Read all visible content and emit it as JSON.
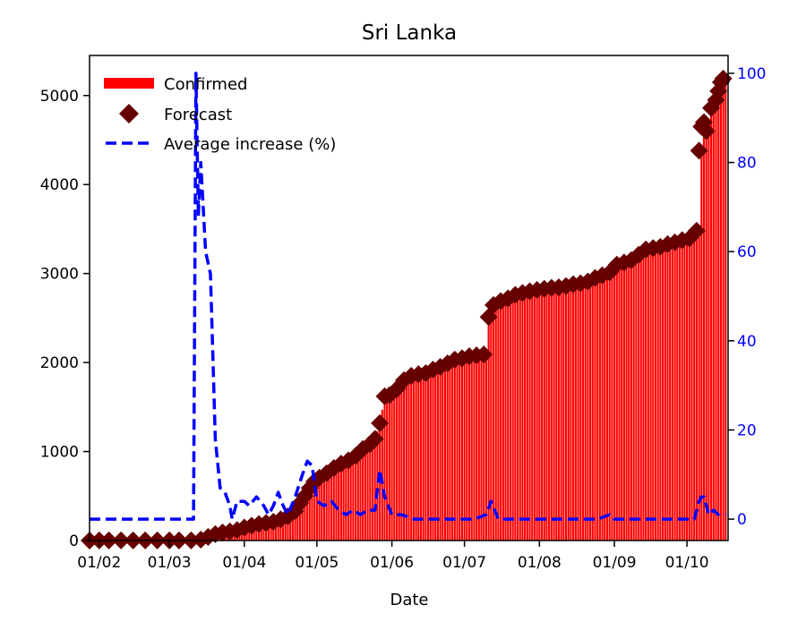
{
  "chart_data": {
    "type": "bar",
    "title": "Sri Lanka",
    "xlabel": "Date",
    "ylabel": "",
    "y2label": "",
    "x_ticks": [
      "01/02",
      "01/03",
      "01/04",
      "01/05",
      "01/06",
      "01/07",
      "01/08",
      "01/09",
      "01/10"
    ],
    "x_tick_dates": [
      "2020-02-01",
      "2020-03-01",
      "2020-04-01",
      "2020-05-01",
      "2020-06-01",
      "2020-07-01",
      "2020-08-01",
      "2020-09-01",
      "2020-10-01"
    ],
    "x_range": [
      "2020-01-28",
      "2020-10-18"
    ],
    "y_ticks": [
      0,
      1000,
      2000,
      3000,
      4000,
      5000
    ],
    "y_range": [
      0,
      5450
    ],
    "y2_ticks": [
      0,
      20,
      40,
      60,
      80,
      100
    ],
    "y2_range": [
      -4.8,
      104
    ],
    "legend": {
      "placement": "top-left",
      "entries": [
        "Confirmed",
        "Forecast",
        "Average increase (%)"
      ]
    },
    "colors": {
      "confirmed": "#ff0000",
      "forecast": "#660000",
      "average": "#0000ff",
      "y2_axis": "#0000ff"
    },
    "confirmed_and_forecast": [
      [
        "2020-01-28",
        0
      ],
      [
        "2020-02-01",
        1
      ],
      [
        "2020-02-15",
        1
      ],
      [
        "2020-03-01",
        1
      ],
      [
        "2020-03-10",
        1
      ],
      [
        "2020-03-13",
        5
      ],
      [
        "2020-03-15",
        18
      ],
      [
        "2020-03-18",
        45
      ],
      [
        "2020-03-20",
        72
      ],
      [
        "2020-03-25",
        102
      ],
      [
        "2020-03-30",
        120
      ],
      [
        "2020-04-03",
        155
      ],
      [
        "2020-04-08",
        189
      ],
      [
        "2020-04-12",
        199
      ],
      [
        "2020-04-16",
        238
      ],
      [
        "2020-04-20",
        304
      ],
      [
        "2020-04-24",
        420
      ],
      [
        "2020-04-27",
        523
      ],
      [
        "2020-04-30",
        665
      ],
      [
        "2020-05-05",
        755
      ],
      [
        "2020-05-10",
        847
      ],
      [
        "2020-05-15",
        915
      ],
      [
        "2020-05-20",
        1028
      ],
      [
        "2020-05-25",
        1141
      ],
      [
        "2020-05-27",
        1319
      ],
      [
        "2020-05-29",
        1620
      ],
      [
        "2020-06-01",
        1643
      ],
      [
        "2020-06-05",
        1797
      ],
      [
        "2020-06-10",
        1859
      ],
      [
        "2020-06-15",
        1880
      ],
      [
        "2020-06-20",
        1950
      ],
      [
        "2020-06-25",
        2000
      ],
      [
        "2020-07-01",
        2066
      ],
      [
        "2020-07-05",
        2077
      ],
      [
        "2020-07-10",
        2094
      ],
      [
        "2020-07-11",
        2511
      ],
      [
        "2020-07-13",
        2646
      ],
      [
        "2020-07-15",
        2687
      ],
      [
        "2020-07-20",
        2730
      ],
      [
        "2020-07-25",
        2781
      ],
      [
        "2020-07-30",
        2810
      ],
      [
        "2020-08-05",
        2834
      ],
      [
        "2020-08-10",
        2844
      ],
      [
        "2020-08-15",
        2880
      ],
      [
        "2020-08-20",
        2902
      ],
      [
        "2020-08-25",
        2959
      ],
      [
        "2020-08-30",
        3012
      ],
      [
        "2020-09-01",
        3086
      ],
      [
        "2020-09-05",
        3123
      ],
      [
        "2020-09-10",
        3195
      ],
      [
        "2020-09-15",
        3271
      ],
      [
        "2020-09-20",
        3300
      ],
      [
        "2020-09-25",
        3345
      ],
      [
        "2020-09-30",
        3380
      ],
      [
        "2020-10-04",
        3402
      ],
      [
        "2020-10-06",
        3513
      ],
      [
        "2020-10-07",
        4400
      ],
      [
        "2020-10-08",
        4630
      ],
      [
        "2020-10-10",
        4700
      ],
      [
        "2020-10-12",
        4900
      ],
      [
        "2020-10-14",
        5000
      ],
      [
        "2020-10-15",
        5100
      ],
      [
        "2020-10-17",
        5180
      ]
    ],
    "forecast_points": [
      [
        "2020-01-28",
        0
      ],
      [
        "2020-02-01",
        1
      ],
      [
        "2020-02-05",
        1
      ],
      [
        "2020-02-10",
        1
      ],
      [
        "2020-02-15",
        1
      ],
      [
        "2020-02-20",
        1
      ],
      [
        "2020-02-25",
        1
      ],
      [
        "2020-03-01",
        1
      ],
      [
        "2020-03-05",
        1
      ],
      [
        "2020-03-10",
        1
      ],
      [
        "2020-03-14",
        10
      ],
      [
        "2020-03-17",
        40
      ],
      [
        "2020-03-20",
        72
      ],
      [
        "2020-03-23",
        90
      ],
      [
        "2020-03-26",
        102
      ],
      [
        "2020-03-29",
        117
      ],
      [
        "2020-04-01",
        146
      ],
      [
        "2020-04-04",
        166
      ],
      [
        "2020-04-07",
        185
      ],
      [
        "2020-04-10",
        197
      ],
      [
        "2020-04-13",
        210
      ],
      [
        "2020-04-16",
        238
      ],
      [
        "2020-04-19",
        270
      ],
      [
        "2020-04-22",
        330
      ],
      [
        "2020-04-24",
        420
      ],
      [
        "2020-04-26",
        500
      ],
      [
        "2020-04-28",
        590
      ],
      [
        "2020-04-30",
        665
      ],
      [
        "2020-05-02",
        705
      ],
      [
        "2020-05-05",
        755
      ],
      [
        "2020-05-08",
        815
      ],
      [
        "2020-05-11",
        863
      ],
      [
        "2020-05-14",
        900
      ],
      [
        "2020-05-17",
        950
      ],
      [
        "2020-05-20",
        1028
      ],
      [
        "2020-05-23",
        1085
      ],
      [
        "2020-05-25",
        1141
      ],
      [
        "2020-05-27",
        1319
      ],
      [
        "2020-05-29",
        1620
      ],
      [
        "2020-05-31",
        1633
      ],
      [
        "2020-06-03",
        1700
      ],
      [
        "2020-06-06",
        1801
      ],
      [
        "2020-06-09",
        1850
      ],
      [
        "2020-06-12",
        1869
      ],
      [
        "2020-06-15",
        1880
      ],
      [
        "2020-06-18",
        1920
      ],
      [
        "2020-06-21",
        1951
      ],
      [
        "2020-06-24",
        1990
      ],
      [
        "2020-06-27",
        2033
      ],
      [
        "2020-06-30",
        2047
      ],
      [
        "2020-07-03",
        2070
      ],
      [
        "2020-07-06",
        2080
      ],
      [
        "2020-07-09",
        2090
      ],
      [
        "2020-07-11",
        2511
      ],
      [
        "2020-07-13",
        2646
      ],
      [
        "2020-07-16",
        2690
      ],
      [
        "2020-07-19",
        2720
      ],
      [
        "2020-07-22",
        2760
      ],
      [
        "2020-07-25",
        2781
      ],
      [
        "2020-07-28",
        2800
      ],
      [
        "2020-07-31",
        2815
      ],
      [
        "2020-08-03",
        2828
      ],
      [
        "2020-08-06",
        2839
      ],
      [
        "2020-08-09",
        2844
      ],
      [
        "2020-08-12",
        2860
      ],
      [
        "2020-08-15",
        2880
      ],
      [
        "2020-08-18",
        2890
      ],
      [
        "2020-08-21",
        2910
      ],
      [
        "2020-08-24",
        2950
      ],
      [
        "2020-08-27",
        2980
      ],
      [
        "2020-08-30",
        3012
      ],
      [
        "2020-09-02",
        3100
      ],
      [
        "2020-09-05",
        3123
      ],
      [
        "2020-09-08",
        3150
      ],
      [
        "2020-09-11",
        3210
      ],
      [
        "2020-09-14",
        3271
      ],
      [
        "2020-09-17",
        3285
      ],
      [
        "2020-09-20",
        3300
      ],
      [
        "2020-09-23",
        3330
      ],
      [
        "2020-09-26",
        3350
      ],
      [
        "2020-09-29",
        3375
      ],
      [
        "2020-10-02",
        3395
      ],
      [
        "2020-10-05",
        3480
      ],
      [
        "2020-10-06",
        4380
      ],
      [
        "2020-10-07",
        4650
      ],
      [
        "2020-10-08",
        4700
      ],
      [
        "2020-10-09",
        4600
      ],
      [
        "2020-10-11",
        4860
      ],
      [
        "2020-10-13",
        4950
      ],
      [
        "2020-10-14",
        5050
      ],
      [
        "2020-10-15",
        5150
      ],
      [
        "2020-10-16",
        5190
      ]
    ],
    "average_increase": [
      [
        "2020-01-28",
        0
      ],
      [
        "2020-03-10",
        0
      ],
      [
        "2020-03-11",
        0
      ],
      [
        "2020-03-12",
        100
      ],
      [
        "2020-03-13",
        68
      ],
      [
        "2020-03-14",
        80
      ],
      [
        "2020-03-15",
        70
      ],
      [
        "2020-03-16",
        60
      ],
      [
        "2020-03-18",
        55
      ],
      [
        "2020-03-20",
        18
      ],
      [
        "2020-03-22",
        7
      ],
      [
        "2020-03-24",
        6
      ],
      [
        "2020-03-26",
        3
      ],
      [
        "2020-03-27",
        0
      ],
      [
        "2020-03-29",
        4
      ],
      [
        "2020-04-01",
        4
      ],
      [
        "2020-04-03",
        3
      ],
      [
        "2020-04-06",
        5
      ],
      [
        "2020-04-09",
        3
      ],
      [
        "2020-04-11",
        1
      ],
      [
        "2020-04-13",
        3
      ],
      [
        "2020-04-15",
        6
      ],
      [
        "2020-04-17",
        3
      ],
      [
        "2020-04-19",
        1
      ],
      [
        "2020-04-22",
        5
      ],
      [
        "2020-04-25",
        10
      ],
      [
        "2020-04-27",
        13
      ],
      [
        "2020-04-29",
        12
      ],
      [
        "2020-05-01",
        4
      ],
      [
        "2020-05-04",
        3
      ],
      [
        "2020-05-07",
        4
      ],
      [
        "2020-05-10",
        2
      ],
      [
        "2020-05-13",
        1
      ],
      [
        "2020-05-16",
        2
      ],
      [
        "2020-05-19",
        1
      ],
      [
        "2020-05-22",
        2
      ],
      [
        "2020-05-25",
        2
      ],
      [
        "2020-05-27",
        11
      ],
      [
        "2020-05-29",
        5
      ],
      [
        "2020-06-01",
        1
      ],
      [
        "2020-06-05",
        1
      ],
      [
        "2020-06-10",
        0
      ],
      [
        "2020-06-15",
        0
      ],
      [
        "2020-06-20",
        0
      ],
      [
        "2020-06-25",
        0
      ],
      [
        "2020-06-30",
        0
      ],
      [
        "2020-07-05",
        0
      ],
      [
        "2020-07-10",
        1
      ],
      [
        "2020-07-12",
        4
      ],
      [
        "2020-07-15",
        0
      ],
      [
        "2020-07-20",
        0
      ],
      [
        "2020-07-25",
        0
      ],
      [
        "2020-07-30",
        0
      ],
      [
        "2020-08-05",
        0
      ],
      [
        "2020-08-10",
        0
      ],
      [
        "2020-08-15",
        0
      ],
      [
        "2020-08-20",
        0
      ],
      [
        "2020-08-25",
        0
      ],
      [
        "2020-08-30",
        1
      ],
      [
        "2020-09-01",
        0
      ],
      [
        "2020-09-05",
        0
      ],
      [
        "2020-09-10",
        0
      ],
      [
        "2020-09-15",
        0
      ],
      [
        "2020-09-20",
        0
      ],
      [
        "2020-09-25",
        0
      ],
      [
        "2020-09-30",
        0
      ],
      [
        "2020-10-02",
        0
      ],
      [
        "2020-10-04",
        0
      ],
      [
        "2020-10-06",
        4
      ],
      [
        "2020-10-07",
        5
      ],
      [
        "2020-10-08",
        5
      ],
      [
        "2020-10-10",
        1
      ],
      [
        "2020-10-12",
        2
      ],
      [
        "2020-10-14",
        1
      ],
      [
        "2020-10-16",
        1
      ],
      [
        "2020-10-17",
        1
      ]
    ]
  }
}
